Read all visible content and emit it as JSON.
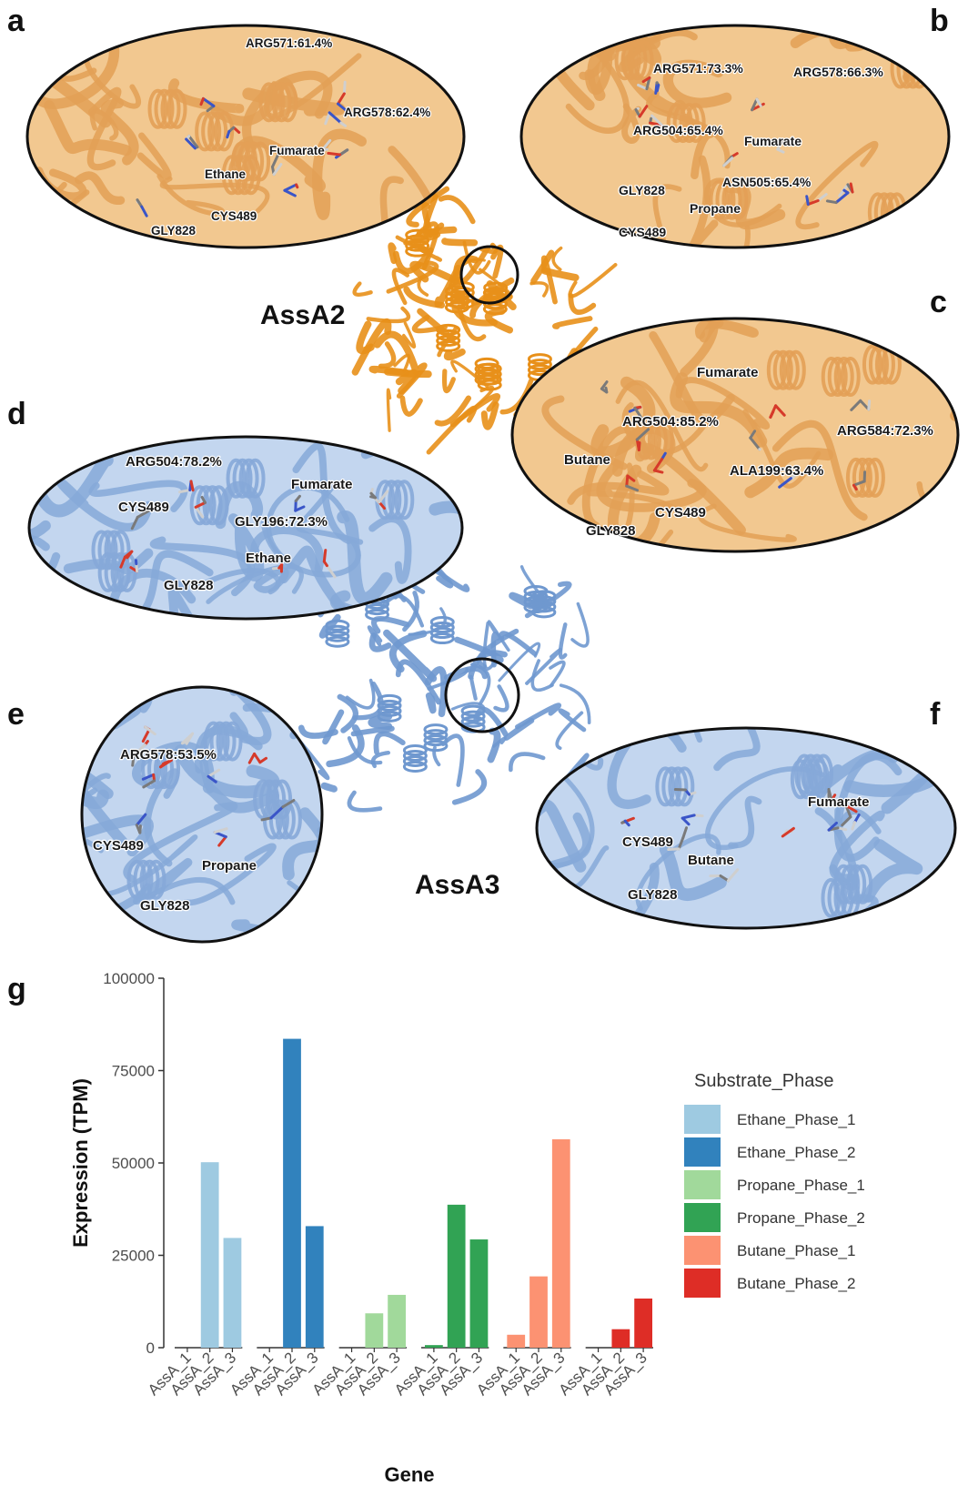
{
  "panels": {
    "a": {
      "letter": "a",
      "theme": "orange",
      "labels": [
        {
          "text": "ARG571:61.4%"
        },
        {
          "text": "ARG578:62.4%"
        },
        {
          "text": "Fumarate"
        },
        {
          "text": "Ethane"
        },
        {
          "text": "CYS489"
        },
        {
          "text": "GLY828"
        }
      ]
    },
    "b": {
      "letter": "b",
      "theme": "orange",
      "labels": [
        {
          "text": "ARG571:73.3%"
        },
        {
          "text": "ARG578:66.3%"
        },
        {
          "text": "ARG504:65.4%"
        },
        {
          "text": "Fumarate"
        },
        {
          "text": "ASN505:65.4%"
        },
        {
          "text": "GLY828"
        },
        {
          "text": "Propane"
        },
        {
          "text": "CYS489"
        }
      ]
    },
    "c": {
      "letter": "c",
      "theme": "orange",
      "labels": [
        {
          "text": "Fumarate"
        },
        {
          "text": "ARG504:85.2%"
        },
        {
          "text": "ARG584:72.3%"
        },
        {
          "text": "Butane"
        },
        {
          "text": "ALA199:63.4%"
        },
        {
          "text": "CYS489"
        },
        {
          "text": "GLY828"
        }
      ]
    },
    "d": {
      "letter": "d",
      "theme": "blue",
      "labels": [
        {
          "text": "ARG504:78.2%"
        },
        {
          "text": "Fumarate"
        },
        {
          "text": "CYS489"
        },
        {
          "text": "GLY196:72.3%"
        },
        {
          "text": "Ethane"
        },
        {
          "text": "GLY828"
        }
      ]
    },
    "e": {
      "letter": "e",
      "theme": "blue",
      "labels": [
        {
          "text": "ARG578:53.5%"
        },
        {
          "text": "CYS489"
        },
        {
          "text": "Propane"
        },
        {
          "text": "GLY828"
        }
      ]
    },
    "f": {
      "letter": "f",
      "theme": "blue",
      "labels": [
        {
          "text": "Fumarate"
        },
        {
          "text": "CYS489"
        },
        {
          "text": "Butane"
        },
        {
          "text": "GLY828"
        }
      ]
    }
  },
  "proteins": {
    "assa2": {
      "label": "AssA2",
      "color": "#e8901a"
    },
    "assa3": {
      "label": "AssA3",
      "color": "#6f98cf"
    }
  },
  "colors": {
    "orange_bg": "#f2c890",
    "orange_ribbon": "#e3a056",
    "blue_bg": "#c3d6ef",
    "blue_ribbon": "#86a9d8"
  },
  "chart_panel_letter": "g",
  "chart_data": {
    "type": "bar",
    "title": "",
    "xlabel": "Gene",
    "ylabel": "Expression (TPM)",
    "ylim": [
      0,
      100000
    ],
    "yticks": [
      "0",
      "25000",
      "50000",
      "75000",
      "100000"
    ],
    "ytick_values": [
      0,
      25000,
      50000,
      75000,
      100000
    ],
    "categories": [
      "AssA_1",
      "AssA_2",
      "AssA_3"
    ],
    "legend_title": "Substrate_Phase",
    "legend_position": "right",
    "series": [
      {
        "name": "Ethane_Phase_1",
        "color": "#9ecae1",
        "values": [
          0,
          50200,
          29700
        ]
      },
      {
        "name": "Ethane_Phase_2",
        "color": "#3182bd",
        "values": [
          0,
          83600,
          32900
        ]
      },
      {
        "name": "Propane_Phase_1",
        "color": "#a1d99b",
        "values": [
          0,
          9300,
          14300
        ]
      },
      {
        "name": "Propane_Phase_2",
        "color": "#31a354",
        "values": [
          700,
          38700,
          29300
        ]
      },
      {
        "name": "Butane_Phase_1",
        "color": "#fc9272",
        "values": [
          3500,
          19300,
          56400
        ]
      },
      {
        "name": "Butane_Phase_2",
        "color": "#de2d26",
        "values": [
          0,
          5000,
          13300
        ]
      }
    ]
  }
}
